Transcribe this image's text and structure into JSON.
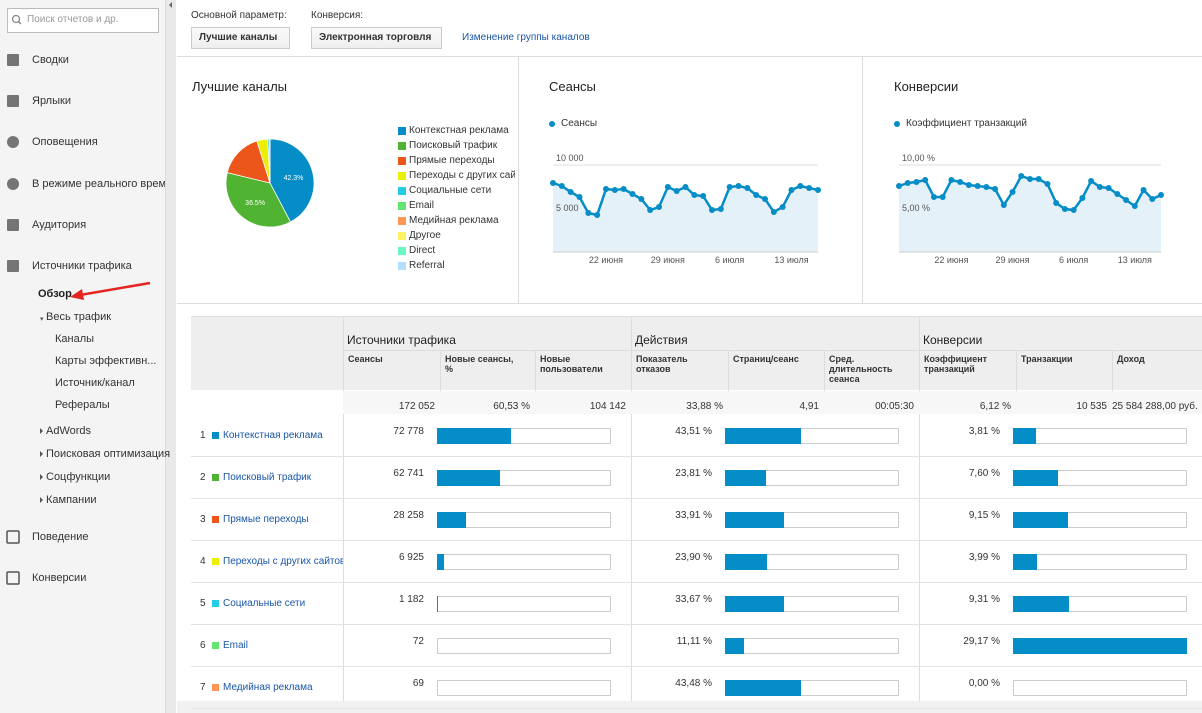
{
  "sidebar": {
    "search_placeholder": "Поиск отчетов и др.",
    "top_items": [
      "Сводки",
      "Ярлыки",
      "Оповещения",
      "В режиме реального времени",
      "Аудитория",
      "Источники трафика"
    ],
    "overview": "Обзор",
    "all_traffic": {
      "label": "Весь трафик",
      "items": [
        "Каналы",
        "Карты эффективн...",
        "Источник/канал",
        "Рефералы"
      ]
    },
    "other_sections": [
      "AdWords",
      "Поисковая оптимизация",
      "Соцфункции",
      "Кампании"
    ],
    "bottom_items": [
      "Поведение",
      "Конверсии"
    ]
  },
  "controls": {
    "primary_label": "Основной параметр:",
    "primary_value": "Лучшие каналы",
    "conversion_label": "Конверсия:",
    "conversion_value": "Электронная торговля",
    "link": "Изменение группы каналов"
  },
  "chart_data": [
    {
      "type": "pie",
      "title": "Лучшие каналы",
      "categories": [
        "Контекстная реклама",
        "Поисковый трафик",
        "Прямые переходы",
        "Переходы с других сайтов",
        "Социальные сети",
        "Email",
        "Медийная реклама",
        "Другое",
        "Direct",
        "Referral"
      ],
      "values": [
        42.3,
        36.5,
        16.4,
        4.0,
        0.7,
        0.04,
        0.04,
        0.01,
        0.01,
        0.01
      ],
      "value_labels": [
        "42.3%",
        "36.5%",
        null,
        null,
        null,
        null,
        null,
        null,
        null,
        null
      ],
      "colors": [
        "#058dc7",
        "#50b432",
        "#ed561b",
        "#edef00",
        "#24cbe5",
        "#64e572",
        "#ff9655",
        "#fff263",
        "#6af9c4",
        "#b2deff"
      ]
    },
    {
      "type": "line",
      "title": "Сеансы",
      "x": [
        null,
        null,
        null,
        null,
        null,
        null,
        "22 июня",
        null,
        null,
        null,
        null,
        null,
        null,
        "29 июня",
        null,
        null,
        null,
        null,
        null,
        null,
        "6 июля",
        null,
        null,
        null,
        null,
        null,
        null,
        "13 июля",
        null,
        null,
        null
      ],
      "series": [
        {
          "name": "Сеансы",
          "color": "#058dc7",
          "values": [
            8200,
            7900,
            7300,
            6800,
            5200,
            5000,
            7600,
            7500,
            7600,
            7100,
            6600,
            5500,
            5800,
            7800,
            7400,
            7800,
            7000,
            6900,
            5500,
            5600,
            7800,
            7900,
            7700,
            7000,
            6600,
            5300,
            5800,
            7500,
            7900,
            7700,
            7500
          ]
        }
      ],
      "ylim": [
        1300,
        11300
      ],
      "yticks": [
        {
          "value": 10000,
          "label": "10 000"
        },
        {
          "value": 5000,
          "label": "5 000"
        }
      ],
      "grid": true
    },
    {
      "type": "line",
      "title": "Конверсии",
      "x": [
        null,
        null,
        null,
        null,
        null,
        null,
        "22 июня",
        null,
        null,
        null,
        null,
        null,
        null,
        "29 июня",
        null,
        null,
        null,
        null,
        null,
        null,
        "6 июля",
        null,
        null,
        null,
        null,
        null,
        null,
        "13 июля",
        null,
        null,
        null
      ],
      "series": [
        {
          "name": "Коэффициент транзакций",
          "color": "#058dc7",
          "values": [
            7.9,
            8.2,
            8.3,
            8.5,
            6.8,
            6.8,
            8.5,
            8.3,
            8.0,
            7.9,
            7.8,
            7.6,
            6.0,
            7.3,
            8.9,
            8.6,
            8.6,
            8.1,
            6.2,
            5.6,
            5.5,
            6.7,
            8.4,
            7.8,
            7.7,
            7.1,
            6.5,
            5.9,
            7.5,
            6.6,
            7.0
          ]
        }
      ],
      "ylim": [
        1.3,
        11.3
      ],
      "yticks": [
        {
          "value": 10,
          "label": "10,00 %"
        },
        {
          "value": 5,
          "label": "5,00 %"
        }
      ],
      "grid": true
    }
  ],
  "table": {
    "groups": [
      "Источники трафика",
      "Действия",
      "Конверсии"
    ],
    "columns": [
      "Сеансы",
      "Новые сеансы, %",
      "Новые пользователи",
      "Показатель отказов",
      "Страниц/сеанс",
      "Сред. длительность сеанса",
      "Коэффициент транзакций",
      "Транзакции",
      "Доход"
    ],
    "totals": [
      {
        "value": 172052,
        "label": "172 052"
      },
      "60,53 %",
      "104 142",
      "33,88 %",
      "4,91",
      "00:05:30",
      "6,12 %",
      "10 535",
      "25 584 288,00 руб."
    ],
    "rows": [
      {
        "rank": 1,
        "name": "Контекстная реклама",
        "color": "#058dc7",
        "sessions": {
          "value": 72778,
          "label": "72 778"
        },
        "bounce": {
          "value": 43.51,
          "label": "43,51 %"
        },
        "conversion": {
          "value": 3.81,
          "label": "3,81 %"
        }
      },
      {
        "rank": 2,
        "name": "Поисковый трафик",
        "color": "#50b432",
        "sessions": {
          "value": 62741,
          "label": "62 741"
        },
        "bounce": {
          "value": 23.81,
          "label": "23,81 %"
        },
        "conversion": {
          "value": 7.6,
          "label": "7,60 %"
        }
      },
      {
        "rank": 3,
        "name": "Прямые переходы",
        "color": "#ed561b",
        "sessions": {
          "value": 28258,
          "label": "28 258"
        },
        "bounce": {
          "value": 33.91,
          "label": "33,91 %"
        },
        "conversion": {
          "value": 9.15,
          "label": "9,15 %"
        }
      },
      {
        "rank": 4,
        "name": "Переходы с других сайтов",
        "color": "#edef00",
        "sessions": {
          "value": 6925,
          "label": "6 925"
        },
        "bounce": {
          "value": 23.9,
          "label": "23,90 %"
        },
        "conversion": {
          "value": 3.99,
          "label": "3,99 %"
        }
      },
      {
        "rank": 5,
        "name": "Социальные сети",
        "color": "#24cbe5",
        "sessions": {
          "value": 1182,
          "label": "1 182"
        },
        "bounce": {
          "value": 33.67,
          "label": "33,67 %"
        },
        "conversion": {
          "value": 9.31,
          "label": "9,31 %"
        }
      },
      {
        "rank": 6,
        "name": "Email",
        "color": "#64e572",
        "sessions": {
          "value": 72,
          "label": "72"
        },
        "bounce": {
          "value": 11.11,
          "label": "11,11 %"
        },
        "conversion": {
          "value": 29.17,
          "label": "29,17 %"
        }
      },
      {
        "rank": 7,
        "name": "Медийная реклама",
        "color": "#ff9655",
        "sessions": {
          "value": 69,
          "label": "69"
        },
        "bounce": {
          "value": 43.48,
          "label": "43,48 %"
        },
        "conversion": {
          "value": 0.0,
          "label": "0,00 %"
        }
      }
    ]
  }
}
